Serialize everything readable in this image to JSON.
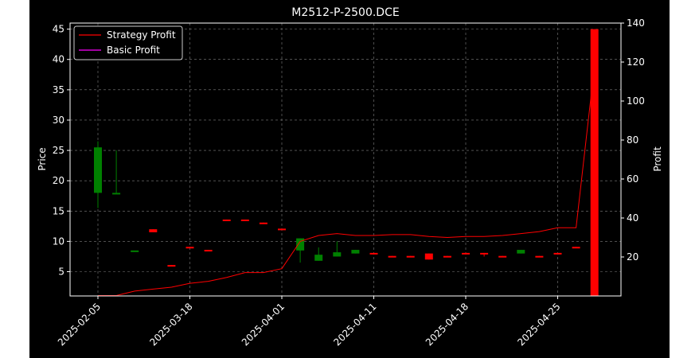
{
  "chart_data": {
    "type": "candlestick-with-profit-lines",
    "title": "M2512-P-2500.DCE",
    "ylabel_left": "Price",
    "ylabel_right": "Profit",
    "ylim_left": [
      1,
      46
    ],
    "ylim_right": [
      0,
      140
    ],
    "yticks_left": [
      5,
      10,
      15,
      20,
      25,
      30,
      35,
      40,
      45
    ],
    "yticks_right": [
      20,
      40,
      60,
      80,
      100,
      120,
      140
    ],
    "x_labels": [
      "2025-02-05",
      "2025-03-18",
      "2025-04-01",
      "2025-04-11",
      "2025-04-18",
      "2025-04-25"
    ],
    "x_label_indices": [
      0,
      5,
      10,
      15,
      20,
      25
    ],
    "grid": true,
    "legend_position": "top-left",
    "colors": {
      "up": "#008000",
      "down": "#ff0000",
      "strategy": "#ff0000",
      "basic": "#ff00ff",
      "grid": "#7f7f7f"
    },
    "candles": [
      {
        "i": 0,
        "o": 18,
        "h": 26.5,
        "l": 15.5,
        "c": 25.5
      },
      {
        "i": 1,
        "o": 18,
        "h": 25,
        "l": 18,
        "c": 18
      },
      {
        "i": 2,
        "o": 8.5,
        "h": 8.5,
        "l": 8.5,
        "c": 8.5
      },
      {
        "i": 3,
        "o": 12.0,
        "h": 12.0,
        "l": 11.5,
        "c": 11.5
      },
      {
        "i": 4,
        "o": 6.1,
        "h": 6.1,
        "l": 6.0,
        "c": 6.0
      },
      {
        "i": 5,
        "o": 9.1,
        "h": 9.1,
        "l": 9.0,
        "c": 9.0
      },
      {
        "i": 6,
        "o": 8.6,
        "h": 8.6,
        "l": 8.5,
        "c": 8.5
      },
      {
        "i": 7,
        "o": 13.6,
        "h": 13.6,
        "l": 13.5,
        "c": 13.5
      },
      {
        "i": 8,
        "o": 13.6,
        "h": 13.6,
        "l": 13.5,
        "c": 13.5
      },
      {
        "i": 9,
        "o": 13.1,
        "h": 13.1,
        "l": 13.0,
        "c": 13.0
      },
      {
        "i": 10,
        "o": 12.1,
        "h": 12.1,
        "l": 12.0,
        "c": 12.0
      },
      {
        "i": 11,
        "o": 8.5,
        "h": 10.5,
        "l": 6.5,
        "c": 10.5
      },
      {
        "i": 12,
        "o": 6.8,
        "h": 9.0,
        "l": 6.8,
        "c": 7.8
      },
      {
        "i": 13,
        "o": 7.5,
        "h": 10.0,
        "l": 7.5,
        "c": 8.2
      },
      {
        "i": 14,
        "o": 8.0,
        "h": 8.6,
        "l": 8.0,
        "c": 8.6
      },
      {
        "i": 15,
        "o": 8.1,
        "h": 8.1,
        "l": 7.9,
        "c": 8.0
      },
      {
        "i": 16,
        "o": 7.6,
        "h": 7.6,
        "l": 7.5,
        "c": 7.5
      },
      {
        "i": 17,
        "o": 7.6,
        "h": 7.6,
        "l": 7.5,
        "c": 7.5
      },
      {
        "i": 18,
        "o": 8.0,
        "h": 8.0,
        "l": 7.0,
        "c": 7.0
      },
      {
        "i": 19,
        "o": 7.6,
        "h": 7.6,
        "l": 7.5,
        "c": 7.5
      },
      {
        "i": 20,
        "o": 8.1,
        "h": 8.1,
        "l": 8.0,
        "c": 8.0
      },
      {
        "i": 21,
        "o": 8.1,
        "h": 8.1,
        "l": 7.5,
        "c": 8.0
      },
      {
        "i": 22,
        "o": 7.6,
        "h": 7.6,
        "l": 7.5,
        "c": 7.5
      },
      {
        "i": 23,
        "o": 8.0,
        "h": 8.6,
        "l": 8.0,
        "c": 8.6
      },
      {
        "i": 24,
        "o": 7.6,
        "h": 7.6,
        "l": 7.5,
        "c": 7.5
      },
      {
        "i": 25,
        "o": 8.1,
        "h": 8.1,
        "l": 8.0,
        "c": 8.0
      },
      {
        "i": 26,
        "o": 9.1,
        "h": 9.1,
        "l": 9.0,
        "c": 9.0
      },
      {
        "i": 27,
        "o": 45.0,
        "h": 45.0,
        "l": 1.0,
        "c": 1.0
      }
    ],
    "series": [
      {
        "name": "Strategy Profit",
        "color": "#ff0000",
        "values": [
          0.2,
          0.2,
          2.5,
          3.5,
          4.5,
          6.5,
          7.5,
          9.5,
          12,
          12,
          14,
          28,
          31,
          32,
          31,
          31,
          31.5,
          31.5,
          30.5,
          30,
          30.5,
          30.5,
          31,
          32,
          33,
          35,
          35,
          118
        ]
      },
      {
        "name": "Basic Profit",
        "color": "#ff00ff",
        "values": [
          0,
          0,
          0,
          0,
          0,
          0,
          0,
          0,
          0,
          0,
          0
        ]
      }
    ]
  }
}
